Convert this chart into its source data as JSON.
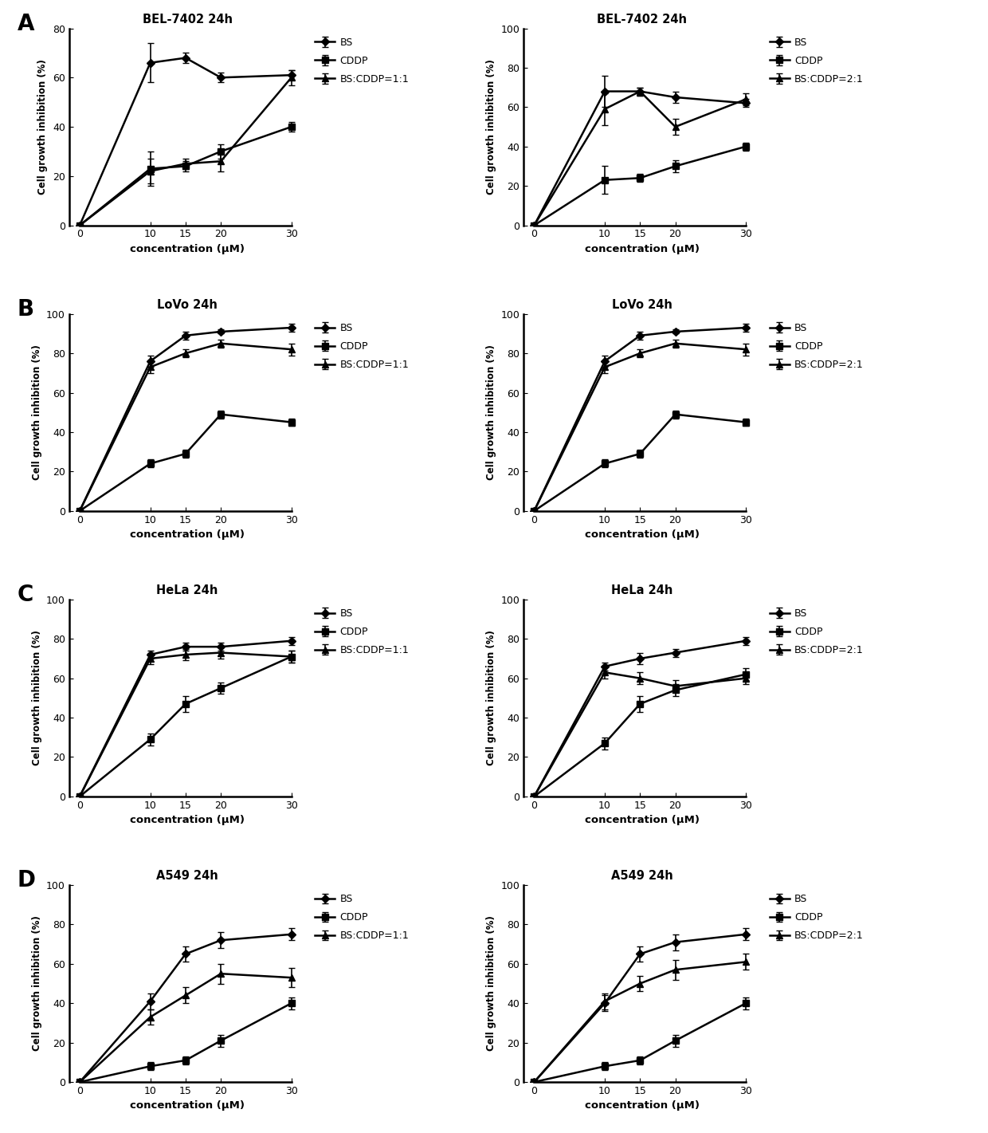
{
  "x": [
    0,
    10,
    15,
    20,
    30
  ],
  "panels": [
    {
      "title": "BEL-7402 24h",
      "legend_label": "BS:CDDP=1:1",
      "ylim": [
        0,
        80
      ],
      "yticks": [
        0,
        20,
        40,
        60,
        80
      ],
      "BS": {
        "y": [
          0,
          66,
          68,
          60,
          61
        ],
        "yerr": [
          0,
          8,
          2,
          2,
          2
        ]
      },
      "CDDP": {
        "y": [
          0,
          23,
          24,
          30,
          40
        ],
        "yerr": [
          0,
          7,
          2,
          3,
          2
        ]
      },
      "combo": {
        "y": [
          0,
          22,
          25,
          26,
          60
        ],
        "yerr": [
          0,
          5,
          2,
          4,
          3
        ]
      }
    },
    {
      "title": "BEL-7402 24h",
      "legend_label": "BS:CDDP=2:1",
      "ylim": [
        0,
        100
      ],
      "yticks": [
        0,
        20,
        40,
        60,
        80,
        100
      ],
      "BS": {
        "y": [
          0,
          68,
          68,
          65,
          62
        ],
        "yerr": [
          0,
          8,
          2,
          3,
          2
        ]
      },
      "CDDP": {
        "y": [
          0,
          23,
          24,
          30,
          40
        ],
        "yerr": [
          0,
          7,
          2,
          3,
          2
        ]
      },
      "combo": {
        "y": [
          0,
          59,
          68,
          50,
          64
        ],
        "yerr": [
          0,
          8,
          2,
          4,
          3
        ]
      }
    },
    {
      "title": "LoVo 24h",
      "legend_label": "BS:CDDP=1:1",
      "ylim": [
        0,
        100
      ],
      "yticks": [
        0,
        20,
        40,
        60,
        80,
        100
      ],
      "BS": {
        "y": [
          0,
          76,
          89,
          91,
          93
        ],
        "yerr": [
          0,
          3,
          2,
          1,
          2
        ]
      },
      "CDDP": {
        "y": [
          0,
          24,
          29,
          49,
          45
        ],
        "yerr": [
          0,
          2,
          2,
          2,
          2
        ]
      },
      "combo": {
        "y": [
          0,
          73,
          80,
          85,
          82
        ],
        "yerr": [
          0,
          3,
          2,
          2,
          3
        ]
      }
    },
    {
      "title": "LoVo 24h",
      "legend_label": "BS:CDDP=2:1",
      "ylim": [
        0,
        100
      ],
      "yticks": [
        0,
        20,
        40,
        60,
        80,
        100
      ],
      "BS": {
        "y": [
          0,
          76,
          89,
          91,
          93
        ],
        "yerr": [
          0,
          3,
          2,
          1,
          2
        ]
      },
      "CDDP": {
        "y": [
          0,
          24,
          29,
          49,
          45
        ],
        "yerr": [
          0,
          2,
          2,
          2,
          2
        ]
      },
      "combo": {
        "y": [
          0,
          73,
          80,
          85,
          82
        ],
        "yerr": [
          0,
          3,
          2,
          2,
          3
        ]
      }
    },
    {
      "title": "HeLa 24h",
      "legend_label": "BS:CDDP=1:1",
      "ylim": [
        0,
        100
      ],
      "yticks": [
        0,
        20,
        40,
        60,
        80,
        100
      ],
      "BS": {
        "y": [
          0,
          72,
          76,
          76,
          79
        ],
        "yerr": [
          0,
          2,
          2,
          2,
          2
        ]
      },
      "CDDP": {
        "y": [
          0,
          29,
          47,
          55,
          71
        ],
        "yerr": [
          0,
          3,
          4,
          3,
          3
        ]
      },
      "combo": {
        "y": [
          0,
          70,
          72,
          73,
          71
        ],
        "yerr": [
          0,
          3,
          3,
          3,
          3
        ]
      }
    },
    {
      "title": "HeLa 24h",
      "legend_label": "BS:CDDP=2:1",
      "ylim": [
        0,
        100
      ],
      "yticks": [
        0,
        20,
        40,
        60,
        80,
        100
      ],
      "BS": {
        "y": [
          0,
          66,
          70,
          73,
          79
        ],
        "yerr": [
          0,
          2,
          3,
          2,
          2
        ]
      },
      "CDDP": {
        "y": [
          0,
          27,
          47,
          54,
          62
        ],
        "yerr": [
          0,
          3,
          4,
          3,
          3
        ]
      },
      "combo": {
        "y": [
          0,
          63,
          60,
          56,
          60
        ],
        "yerr": [
          0,
          3,
          3,
          3,
          3
        ]
      }
    },
    {
      "title": "A549 24h",
      "legend_label": "BS:CDDP=1:1",
      "ylim": [
        0,
        100
      ],
      "yticks": [
        0,
        20,
        40,
        60,
        80,
        100
      ],
      "BS": {
        "y": [
          0,
          41,
          65,
          72,
          75
        ],
        "yerr": [
          0,
          4,
          4,
          4,
          3
        ]
      },
      "CDDP": {
        "y": [
          0,
          8,
          11,
          21,
          40
        ],
        "yerr": [
          0,
          2,
          2,
          3,
          3
        ]
      },
      "combo": {
        "y": [
          0,
          33,
          44,
          55,
          53
        ],
        "yerr": [
          0,
          4,
          4,
          5,
          5
        ]
      }
    },
    {
      "title": "A549 24h",
      "legend_label": "BS:CDDP=2:1",
      "ylim": [
        0,
        100
      ],
      "yticks": [
        0,
        20,
        40,
        60,
        80,
        100
      ],
      "BS": {
        "y": [
          0,
          40,
          65,
          71,
          75
        ],
        "yerr": [
          0,
          4,
          4,
          4,
          3
        ]
      },
      "CDDP": {
        "y": [
          0,
          8,
          11,
          21,
          40
        ],
        "yerr": [
          0,
          2,
          2,
          3,
          3
        ]
      },
      "combo": {
        "y": [
          0,
          41,
          50,
          57,
          61
        ],
        "yerr": [
          0,
          4,
          4,
          5,
          4
        ]
      }
    }
  ],
  "panel_labels": [
    "A",
    "B",
    "C",
    "D"
  ],
  "color": "#000000",
  "xlabel": "concentration (μM)",
  "ylabel": "Cell growth inhibition (%)",
  "marker_BS": "D",
  "marker_CDDP": "s",
  "marker_combo": "^",
  "linewidth": 1.8,
  "markersize": 5.5,
  "capsize": 3,
  "elinewidth": 1.2
}
